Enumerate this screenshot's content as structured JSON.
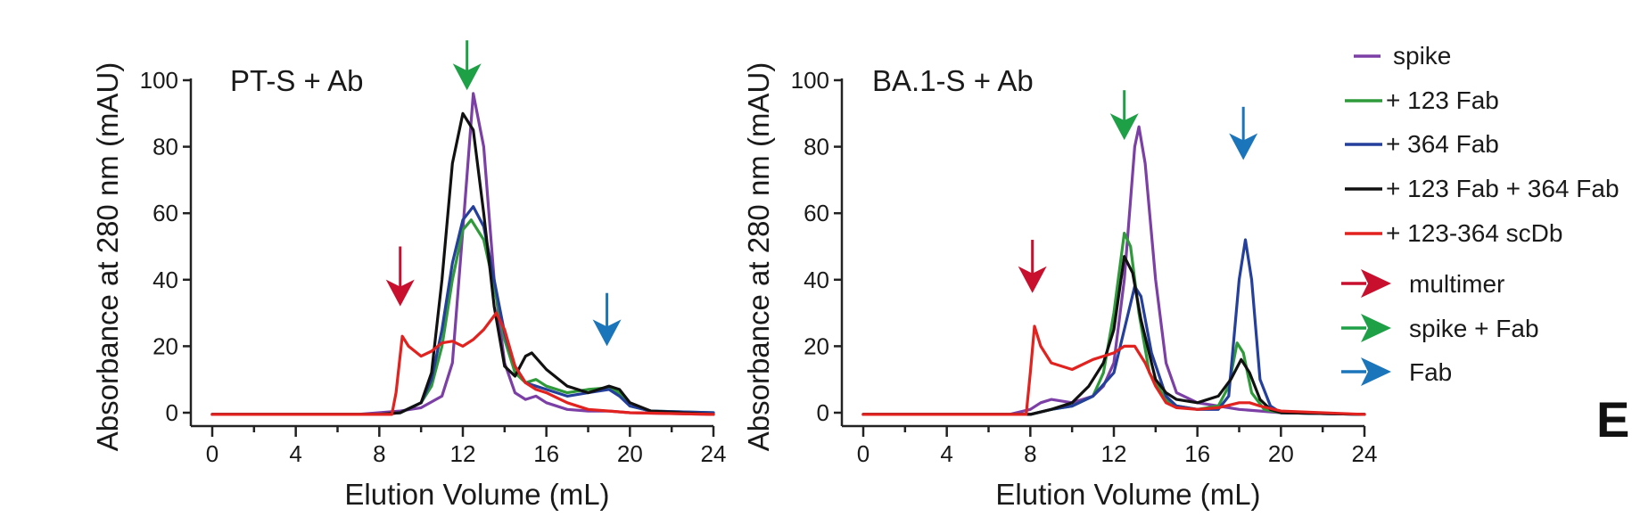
{
  "panel_letter": "E",
  "legend": {
    "lines": [
      {
        "label": "spike",
        "color": "#7b3fa6"
      },
      {
        "label": "+ 123 Fab",
        "color": "#2f9a3a"
      },
      {
        "label": "+ 364 Fab",
        "color": "#243f9c"
      },
      {
        "label": "+ 123 Fab + 364 Fab",
        "color": "#111111"
      },
      {
        "label": "+ 123-364 scDb",
        "color": "#e2221f"
      }
    ],
    "arrows": [
      {
        "label": "multimer",
        "color": "#c8102e"
      },
      {
        "label": "spike + Fab",
        "color": "#1ea047"
      },
      {
        "label": "Fab",
        "color": "#1b75bb"
      }
    ]
  },
  "chart_data": [
    {
      "type": "line",
      "title": "PT-S + Ab",
      "xlabel": "Elution Volume (mL)",
      "ylabel": "Absorbance at 280 nm (mAU)",
      "xlim": [
        0,
        24
      ],
      "ylim": [
        0,
        100
      ],
      "xticks": [
        "0",
        "4",
        "8",
        "12",
        "16",
        "20",
        "24"
      ],
      "yticks": [
        "0",
        "20",
        "40",
        "60",
        "80",
        "100"
      ],
      "grid": false,
      "series": [
        {
          "name": "spike",
          "color": "#7b3fa6",
          "points": [
            [
              0,
              -0.5
            ],
            [
              7,
              -0.5
            ],
            [
              8,
              0
            ],
            [
              9,
              0.5
            ],
            [
              10,
              1.5
            ],
            [
              11,
              5
            ],
            [
              11.5,
              15
            ],
            [
              12,
              55
            ],
            [
              12.5,
              96
            ],
            [
              13,
              80
            ],
            [
              13.5,
              40
            ],
            [
              14,
              15
            ],
            [
              14.5,
              6
            ],
            [
              15,
              4
            ],
            [
              15.5,
              5
            ],
            [
              16,
              3
            ],
            [
              17,
              1
            ],
            [
              18,
              0.5
            ],
            [
              19,
              0.5
            ],
            [
              20,
              0
            ],
            [
              24,
              -0.5
            ]
          ]
        },
        {
          "name": "+ 123 Fab",
          "color": "#2f9a3a",
          "points": [
            [
              0,
              -0.5
            ],
            [
              8,
              -0.5
            ],
            [
              9,
              0
            ],
            [
              10,
              3
            ],
            [
              10.5,
              8
            ],
            [
              11,
              20
            ],
            [
              11.5,
              40
            ],
            [
              12,
              55
            ],
            [
              12.4,
              58
            ],
            [
              13,
              52
            ],
            [
              13.5,
              38
            ],
            [
              14,
              22
            ],
            [
              14.5,
              12
            ],
            [
              15,
              9
            ],
            [
              15.5,
              10
            ],
            [
              16,
              8
            ],
            [
              17,
              6
            ],
            [
              18,
              7
            ],
            [
              19,
              7.5
            ],
            [
              19.5,
              6
            ],
            [
              20,
              2
            ],
            [
              21,
              0.5
            ],
            [
              24,
              0
            ]
          ]
        },
        {
          "name": "+ 364 Fab",
          "color": "#243f9c",
          "points": [
            [
              0,
              -0.5
            ],
            [
              8,
              -0.5
            ],
            [
              9,
              0
            ],
            [
              10,
              3
            ],
            [
              10.5,
              10
            ],
            [
              11,
              25
            ],
            [
              11.5,
              45
            ],
            [
              12,
              58
            ],
            [
              12.5,
              62
            ],
            [
              13,
              56
            ],
            [
              13.5,
              40
            ],
            [
              14,
              24
            ],
            [
              14.5,
              14
            ],
            [
              15,
              9
            ],
            [
              15.5,
              8
            ],
            [
              16,
              7
            ],
            [
              17,
              5
            ],
            [
              18,
              6
            ],
            [
              19,
              7
            ],
            [
              19.5,
              5
            ],
            [
              20,
              2
            ],
            [
              21,
              0.5
            ],
            [
              24,
              0
            ]
          ]
        },
        {
          "name": "+ 123 Fab + 364 Fab",
          "color": "#111111",
          "points": [
            [
              0,
              -0.5
            ],
            [
              8,
              -0.5
            ],
            [
              9,
              0
            ],
            [
              10,
              3
            ],
            [
              10.5,
              12
            ],
            [
              11,
              40
            ],
            [
              11.5,
              75
            ],
            [
              12,
              90
            ],
            [
              12.5,
              85
            ],
            [
              13,
              60
            ],
            [
              13.5,
              32
            ],
            [
              14,
              14
            ],
            [
              14.5,
              11
            ],
            [
              15,
              17
            ],
            [
              15.3,
              18
            ],
            [
              16,
              13
            ],
            [
              17,
              8
            ],
            [
              18,
              6
            ],
            [
              19,
              8
            ],
            [
              19.5,
              7
            ],
            [
              20,
              3
            ],
            [
              21,
              0.5
            ],
            [
              24,
              -0.5
            ]
          ]
        },
        {
          "name": "+ 123-364 scDb",
          "color": "#e2221f",
          "points": [
            [
              0,
              -0.5
            ],
            [
              8.6,
              -0.5
            ],
            [
              8.8,
              6
            ],
            [
              9.1,
              23
            ],
            [
              9.4,
              20
            ],
            [
              10,
              17
            ],
            [
              10.5,
              18.5
            ],
            [
              11,
              21
            ],
            [
              11.5,
              21.5
            ],
            [
              12,
              20
            ],
            [
              12.5,
              22
            ],
            [
              13,
              25
            ],
            [
              13.6,
              30
            ],
            [
              14,
              25
            ],
            [
              14.5,
              14
            ],
            [
              15,
              9
            ],
            [
              15.5,
              7
            ],
            [
              16,
              6
            ],
            [
              17,
              3
            ],
            [
              18,
              1
            ],
            [
              19,
              0.5
            ],
            [
              20,
              0
            ],
            [
              24,
              -0.5
            ]
          ]
        }
      ],
      "arrows": [
        {
          "color": "#c8102e",
          "x": 9,
          "y_from": 50,
          "y_to": 32
        },
        {
          "color": "#1ea047",
          "x": 12.2,
          "y_from": 112,
          "y_to": 97
        },
        {
          "color": "#1b75bb",
          "x": 18.9,
          "y_from": 36,
          "y_to": 20
        }
      ]
    },
    {
      "type": "line",
      "title": "BA.1-S + Ab",
      "xlabel": "Elution Volume (mL)",
      "ylabel": "Absorbance at 280 nm (mAU)",
      "xlim": [
        0,
        24
      ],
      "ylim": [
        0,
        100
      ],
      "xticks": [
        "0",
        "4",
        "8",
        "12",
        "16",
        "20",
        "24"
      ],
      "yticks": [
        "0",
        "20",
        "40",
        "60",
        "80",
        "100"
      ],
      "grid": false,
      "series": [
        {
          "name": "spike",
          "color": "#7b3fa6",
          "points": [
            [
              0,
              -0.5
            ],
            [
              7,
              -0.5
            ],
            [
              8,
              1
            ],
            [
              8.5,
              3
            ],
            [
              9,
              4
            ],
            [
              10,
              3
            ],
            [
              11,
              5
            ],
            [
              11.5,
              8
            ],
            [
              12,
              15
            ],
            [
              12.5,
              40
            ],
            [
              13,
              80
            ],
            [
              13.2,
              86
            ],
            [
              13.5,
              75
            ],
            [
              14,
              40
            ],
            [
              14.5,
              15
            ],
            [
              15,
              6
            ],
            [
              16,
              3
            ],
            [
              17,
              2
            ],
            [
              18,
              1
            ],
            [
              19,
              0.5
            ],
            [
              20,
              0
            ],
            [
              24,
              -0.5
            ]
          ]
        },
        {
          "name": "+ 123 Fab",
          "color": "#2f9a3a",
          "points": [
            [
              0,
              -0.5
            ],
            [
              8,
              -0.5
            ],
            [
              9,
              1
            ],
            [
              10,
              2
            ],
            [
              11,
              5
            ],
            [
              11.5,
              12
            ],
            [
              12,
              30
            ],
            [
              12.5,
              54
            ],
            [
              12.8,
              50
            ],
            [
              13.2,
              30
            ],
            [
              13.7,
              12
            ],
            [
              14.5,
              4
            ],
            [
              15,
              2
            ],
            [
              16,
              1
            ],
            [
              17,
              2
            ],
            [
              17.5,
              8
            ],
            [
              17.9,
              21
            ],
            [
              18.2,
              18
            ],
            [
              18.6,
              6
            ],
            [
              19.2,
              1
            ],
            [
              20,
              0
            ],
            [
              24,
              -0.5
            ]
          ]
        },
        {
          "name": "+ 364 Fab",
          "color": "#243f9c",
          "points": [
            [
              0,
              -0.5
            ],
            [
              8,
              -0.5
            ],
            [
              9,
              1
            ],
            [
              10,
              2
            ],
            [
              11,
              5
            ],
            [
              12,
              12
            ],
            [
              12.5,
              25
            ],
            [
              13,
              38
            ],
            [
              13.3,
              35
            ],
            [
              13.8,
              18
            ],
            [
              14.5,
              5
            ],
            [
              15,
              2
            ],
            [
              16,
              1
            ],
            [
              17,
              1
            ],
            [
              17.5,
              5
            ],
            [
              18,
              40
            ],
            [
              18.3,
              52
            ],
            [
              18.6,
              40
            ],
            [
              19,
              10
            ],
            [
              19.5,
              2
            ],
            [
              20,
              0
            ],
            [
              24,
              -0.5
            ]
          ]
        },
        {
          "name": "+ 123 Fab + 364 Fab",
          "color": "#111111",
          "points": [
            [
              0,
              -0.5
            ],
            [
              8,
              -0.5
            ],
            [
              9,
              1
            ],
            [
              10,
              3
            ],
            [
              10.8,
              8
            ],
            [
              11.5,
              15
            ],
            [
              12,
              25
            ],
            [
              12.5,
              47
            ],
            [
              12.9,
              42
            ],
            [
              13.3,
              28
            ],
            [
              14,
              10
            ],
            [
              14.5,
              6
            ],
            [
              15,
              4
            ],
            [
              16,
              3
            ],
            [
              17,
              5
            ],
            [
              17.6,
              10
            ],
            [
              18.1,
              16
            ],
            [
              18.5,
              12
            ],
            [
              19,
              4
            ],
            [
              19.5,
              1
            ],
            [
              20,
              0
            ],
            [
              24,
              -0.5
            ]
          ]
        },
        {
          "name": "+ 123-364 scDb",
          "color": "#e2221f",
          "points": [
            [
              0,
              -0.5
            ],
            [
              7.8,
              -0.5
            ],
            [
              8,
              12
            ],
            [
              8.2,
              26
            ],
            [
              8.5,
              20
            ],
            [
              9,
              15
            ],
            [
              10,
              13
            ],
            [
              11,
              16
            ],
            [
              11.5,
              17
            ],
            [
              12,
              18
            ],
            [
              12.5,
              20
            ],
            [
              13,
              20
            ],
            [
              13.5,
              15
            ],
            [
              14,
              8
            ],
            [
              14.5,
              3
            ],
            [
              15,
              1.5
            ],
            [
              16,
              1
            ],
            [
              17,
              1.5
            ],
            [
              18,
              3
            ],
            [
              18.5,
              3
            ],
            [
              19,
              2
            ],
            [
              20,
              0.5
            ],
            [
              24,
              -0.5
            ]
          ]
        }
      ],
      "arrows": [
        {
          "color": "#c8102e",
          "x": 8.1,
          "y_from": 52,
          "y_to": 36
        },
        {
          "color": "#1ea047",
          "x": 12.5,
          "y_from": 97,
          "y_to": 82
        },
        {
          "color": "#1b75bb",
          "x": 18.2,
          "y_from": 92,
          "y_to": 76
        }
      ]
    }
  ]
}
